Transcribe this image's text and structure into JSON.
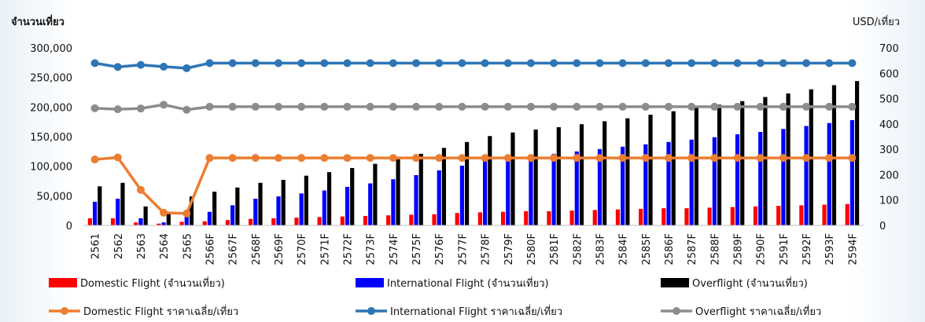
{
  "chart_data": {
    "type": "bar",
    "ylabel_left": "จำนวนเที่ยว",
    "ylabel_right": "USD/เที่ยว",
    "ylim_left": [
      0,
      300000
    ],
    "yticks_left": [
      "0",
      "50,000",
      "100,000",
      "150,000",
      "200,000",
      "250,000",
      "300,000"
    ],
    "ylim_right": [
      0,
      700
    ],
    "yticks_right": [
      "0",
      "100",
      "200",
      "300",
      "400",
      "500",
      "600",
      "700"
    ],
    "grid": false,
    "legend_position": "bottom",
    "categories": [
      "2561",
      "2562",
      "2563",
      "2564",
      "2565",
      "2566F",
      "2567F",
      "2568F",
      "2569F",
      "2570F",
      "2571F",
      "2572F",
      "2573F",
      "2574F",
      "2575F",
      "2576F",
      "2577F",
      "2578F",
      "2579F",
      "2580F",
      "2581F",
      "2582F",
      "2583F",
      "2584F",
      "2585F",
      "2586F",
      "2587F",
      "2588F",
      "2589F",
      "2590F",
      "2591F",
      "2592F",
      "2593F",
      "2594F"
    ],
    "bar_series": [
      {
        "name": "Domestic Flight (จำนวนเที่ยว)",
        "color": "#ff0000",
        "axis": "left",
        "values": [
          12000,
          12000,
          5000,
          3000,
          6000,
          7000,
          9000,
          11000,
          12000,
          13000,
          14000,
          15000,
          16000,
          17000,
          18000,
          19000,
          21000,
          22000,
          23000,
          24000,
          24000,
          25000,
          26000,
          27000,
          28000,
          29000,
          29000,
          30000,
          31000,
          32000,
          33000,
          34000,
          35000,
          36000
        ]
      },
      {
        "name": "International Flight (จำนวนเที่ยว)",
        "color": "#0000ff",
        "axis": "left",
        "values": [
          40000,
          45000,
          12000,
          5000,
          17000,
          23000,
          34000,
          45000,
          49000,
          54000,
          59000,
          65000,
          71000,
          78000,
          85000,
          93000,
          101000,
          109000,
          113000,
          118000,
          121000,
          125000,
          129000,
          133000,
          137000,
          141000,
          145000,
          149000,
          154000,
          158000,
          163000,
          168000,
          173000,
          178000
        ]
      },
      {
        "name": "Overflight (จำนวนเที่ยว)",
        "color": "#000000",
        "axis": "left",
        "values": [
          66000,
          72000,
          32000,
          23000,
          49000,
          57000,
          64000,
          72000,
          77000,
          84000,
          90000,
          97000,
          104000,
          112000,
          121000,
          131000,
          141000,
          151000,
          157000,
          162000,
          166000,
          171000,
          176000,
          181000,
          187000,
          193000,
          199000,
          204000,
          210000,
          217000,
          223000,
          230000,
          237000,
          244000
        ]
      }
    ],
    "line_series": [
      {
        "name": "Domestic Flight ราคาเฉลี่ย/เที่ยว",
        "color": "#ed7d31",
        "axis": "right",
        "values": [
          260,
          268,
          140,
          50,
          47,
          266,
          266,
          266,
          266,
          266,
          266,
          266,
          266,
          266,
          266,
          266,
          266,
          266,
          266,
          266,
          266,
          266,
          266,
          266,
          266,
          266,
          266,
          266,
          266,
          266,
          266,
          266,
          266,
          266
        ]
      },
      {
        "name": "International Flight ราคาเฉลี่ย/เที่ยว",
        "color": "#2e75b6",
        "axis": "right",
        "values": [
          640,
          625,
          633,
          626,
          620,
          640,
          640,
          640,
          640,
          640,
          640,
          640,
          640,
          640,
          640,
          640,
          640,
          640,
          640,
          640,
          640,
          640,
          640,
          640,
          640,
          640,
          640,
          640,
          640,
          640,
          640,
          640,
          640,
          640
        ]
      },
      {
        "name": "Overflight ราคาเฉลี่ย/เที่ยว",
        "color": "#8c8c8c",
        "axis": "right",
        "values": [
          462,
          458,
          461,
          476,
          456,
          468,
          468,
          468,
          468,
          468,
          468,
          468,
          468,
          468,
          468,
          468,
          468,
          468,
          468,
          468,
          468,
          468,
          468,
          468,
          468,
          468,
          468,
          468,
          468,
          468,
          468,
          468,
          468,
          468
        ]
      }
    ]
  }
}
